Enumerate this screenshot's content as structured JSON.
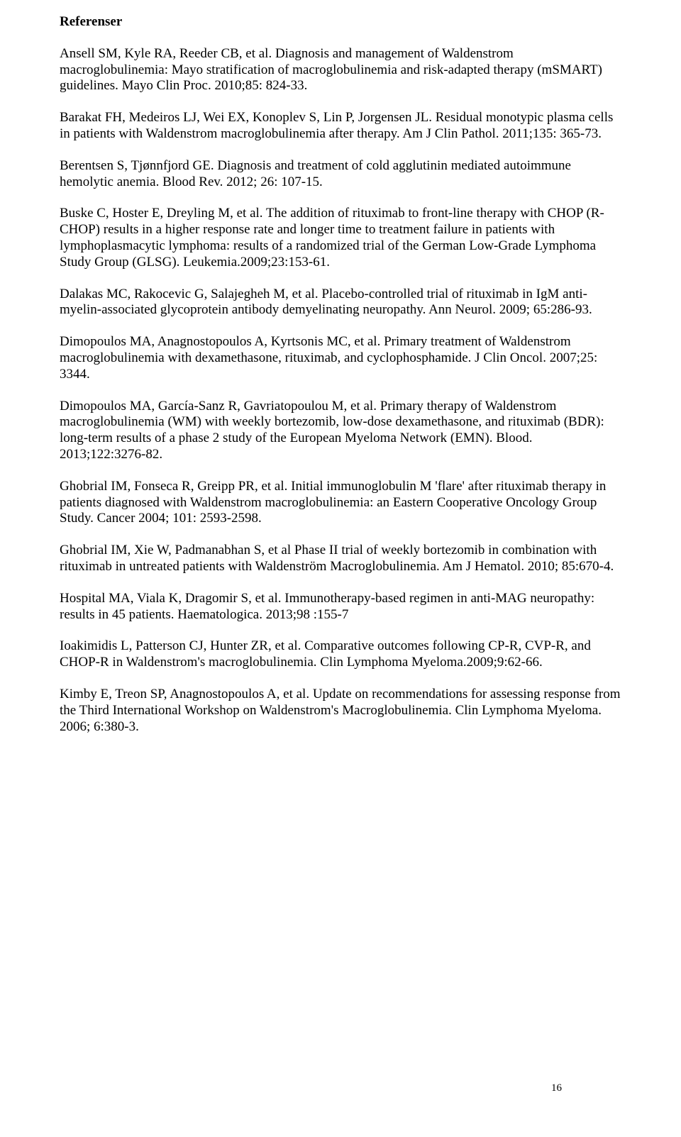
{
  "title": "Referenser",
  "page_number": "16",
  "references": [
    "Ansell SM, Kyle RA, Reeder CB, et al. Diagnosis and management of Waldenstrom macroglobulinemia: Mayo stratification of macroglobulinemia and risk-adapted therapy (mSMART) guidelines. Mayo Clin Proc. 2010;85: 824-33.",
    "Barakat FH, Medeiros LJ, Wei EX, Konoplev S, Lin P, Jorgensen JL. Residual monotypic plasma cells in patients with Waldenstrom macroglobulinemia after therapy. Am J Clin Pathol. 2011;135: 365-73.",
    "Berentsen S, Tjønnfjord GE. Diagnosis and treatment of cold agglutinin mediated autoimmune hemolytic anemia. Blood Rev. 2012; 26: 107-15.",
    "Buske C, Hoster E, Dreyling M, et al. The addition of rituximab to front-line therapy with CHOP (R-CHOP) results in a higher response rate and longer time to treatment failure in patients with lymphoplasmacytic lymphoma: results of a randomized trial of the German Low-Grade Lymphoma Study Group (GLSG). Leukemia.2009;23:153-61.",
    "Dalakas MC, Rakocevic G, Salajegheh M, et al. Placebo-controlled trial of rituximab in IgM anti-myelin-associated glycoprotein antibody demyelinating neuropathy. Ann Neurol. 2009; 65:286-93.",
    "Dimopoulos MA, Anagnostopoulos A, Kyrtsonis MC, et al. Primary treatment of Waldenstrom  macroglobulinemia with dexamethasone, rituximab, and cyclophosphamide. J Clin Oncol. 2007;25: 3344.",
    "Dimopoulos MA, García-Sanz R, Gavriatopoulou M, et al. Primary therapy of Waldenstrom macroglobulinemia (WM) with weekly bortezomib, low-dose dexamethasone, and rituximab (BDR): long-term results of a phase 2 study of the European Myeloma Network (EMN). Blood. 2013;122:3276-82.",
    "Ghobrial IM, Fonseca R, Greipp PR, et al. Initial immunoglobulin M 'flare' after rituximab therapy in patients diagnosed with Waldenstrom macroglobulinemia: an Eastern Cooperative Oncology Group Study. Cancer 2004; 101: 2593-2598.",
    "Ghobrial IM, Xie W, Padmanabhan S, et al  Phase II trial of weekly bortezomib in combination with rituximab in untreated patients with Waldenström Macroglobulinemia. Am J Hematol. 2010; 85:670-4.",
    "Hospital MA, Viala K, Dragomir S, et al. Immunotherapy-based regimen in anti-MAG neuropathy: results in 45 patients. Haematologica. 2013;98 :155-7",
    "Ioakimidis L, Patterson CJ, Hunter ZR, et al. Comparative outcomes following CP-R, CVP-R, and CHOP-R in Waldenstrom's macroglobulinemia. Clin Lymphoma Myeloma.2009;9:62-66.",
    "Kimby E, Treon SP, Anagnostopoulos A, et al. Update on recommendations for assessing response from the Third International Workshop on Waldenstrom's Macroglobulinemia. Clin Lymphoma Myeloma. 2006; 6:380-3."
  ]
}
